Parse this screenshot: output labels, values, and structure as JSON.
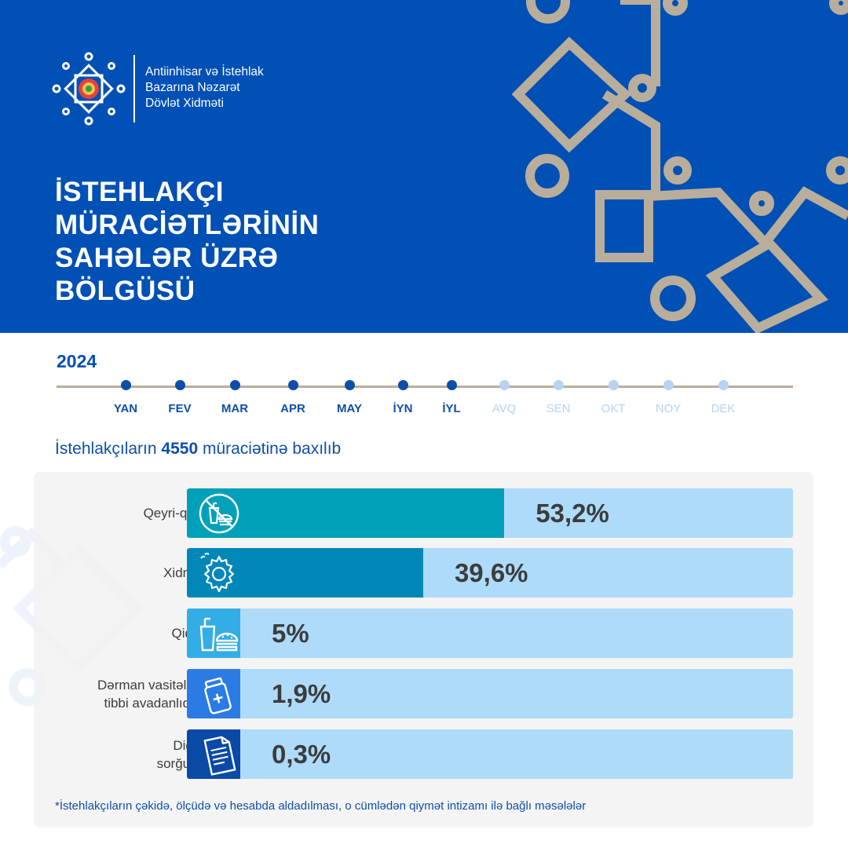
{
  "organization": {
    "name_lines": [
      "Antiinhisar və İstehlak",
      "Bazarına Nəzarət",
      "Dövlət Xidməti"
    ]
  },
  "title_lines": [
    "İSTEHLAKÇI",
    "MÜRACİƏTLƏRİNİN",
    "SAHƏLƏR ÜZRƏ",
    "BÖLGÜSÜ"
  ],
  "timeline": {
    "year": "2024",
    "months": [
      {
        "label": "YAN",
        "active": true
      },
      {
        "label": "FEV",
        "active": true
      },
      {
        "label": "MAR",
        "active": true
      },
      {
        "label": "APR",
        "active": true
      },
      {
        "label": "MAY",
        "active": true
      },
      {
        "label": "İYN",
        "active": true
      },
      {
        "label": "İYL",
        "active": true
      },
      {
        "label": "AVQ",
        "active": false
      },
      {
        "label": "SEN",
        "active": false
      },
      {
        "label": "OKT",
        "active": false
      },
      {
        "label": "NOY",
        "active": false
      },
      {
        "label": "DEK",
        "active": false
      }
    ]
  },
  "summary": {
    "prefix": "İstehlakçıların ",
    "count": "4550",
    "suffix": " müraciətinə baxılıb"
  },
  "colors": {
    "header_bg": "#0050b5",
    "decor": "#b9ae9b",
    "track": "#aedbfa",
    "active_month": "#0f4ea8",
    "inactive_month": "#b6d3f2"
  },
  "chart_data": {
    "type": "bar",
    "orientation": "horizontal",
    "unit": "%",
    "categories": [
      "Qeyri-qida",
      "Xidmət",
      "Qida*",
      "Dərman vasitələri,\ntibbi avadanlıqlar",
      "Digər\nsorğular"
    ],
    "values": [
      53.2,
      39.6,
      5,
      1.9,
      0.3
    ],
    "value_labels": [
      "53,2%",
      "39,6%",
      "5%",
      "1,9%",
      "0,3%"
    ],
    "icons": [
      "non-food-icon",
      "service-gear-icon",
      "food-icon",
      "medicine-icon",
      "document-icon"
    ],
    "colors": [
      "#00a1b8",
      "#0087b7",
      "#33ade5",
      "#2c7be5",
      "#0a4aa6"
    ]
  },
  "footnote": "*İstehlakçıların çəkidə, ölçüdə və hesabda aldadılması, o cümlədən qiymət intizamı ilə bağlı məsələlər"
}
